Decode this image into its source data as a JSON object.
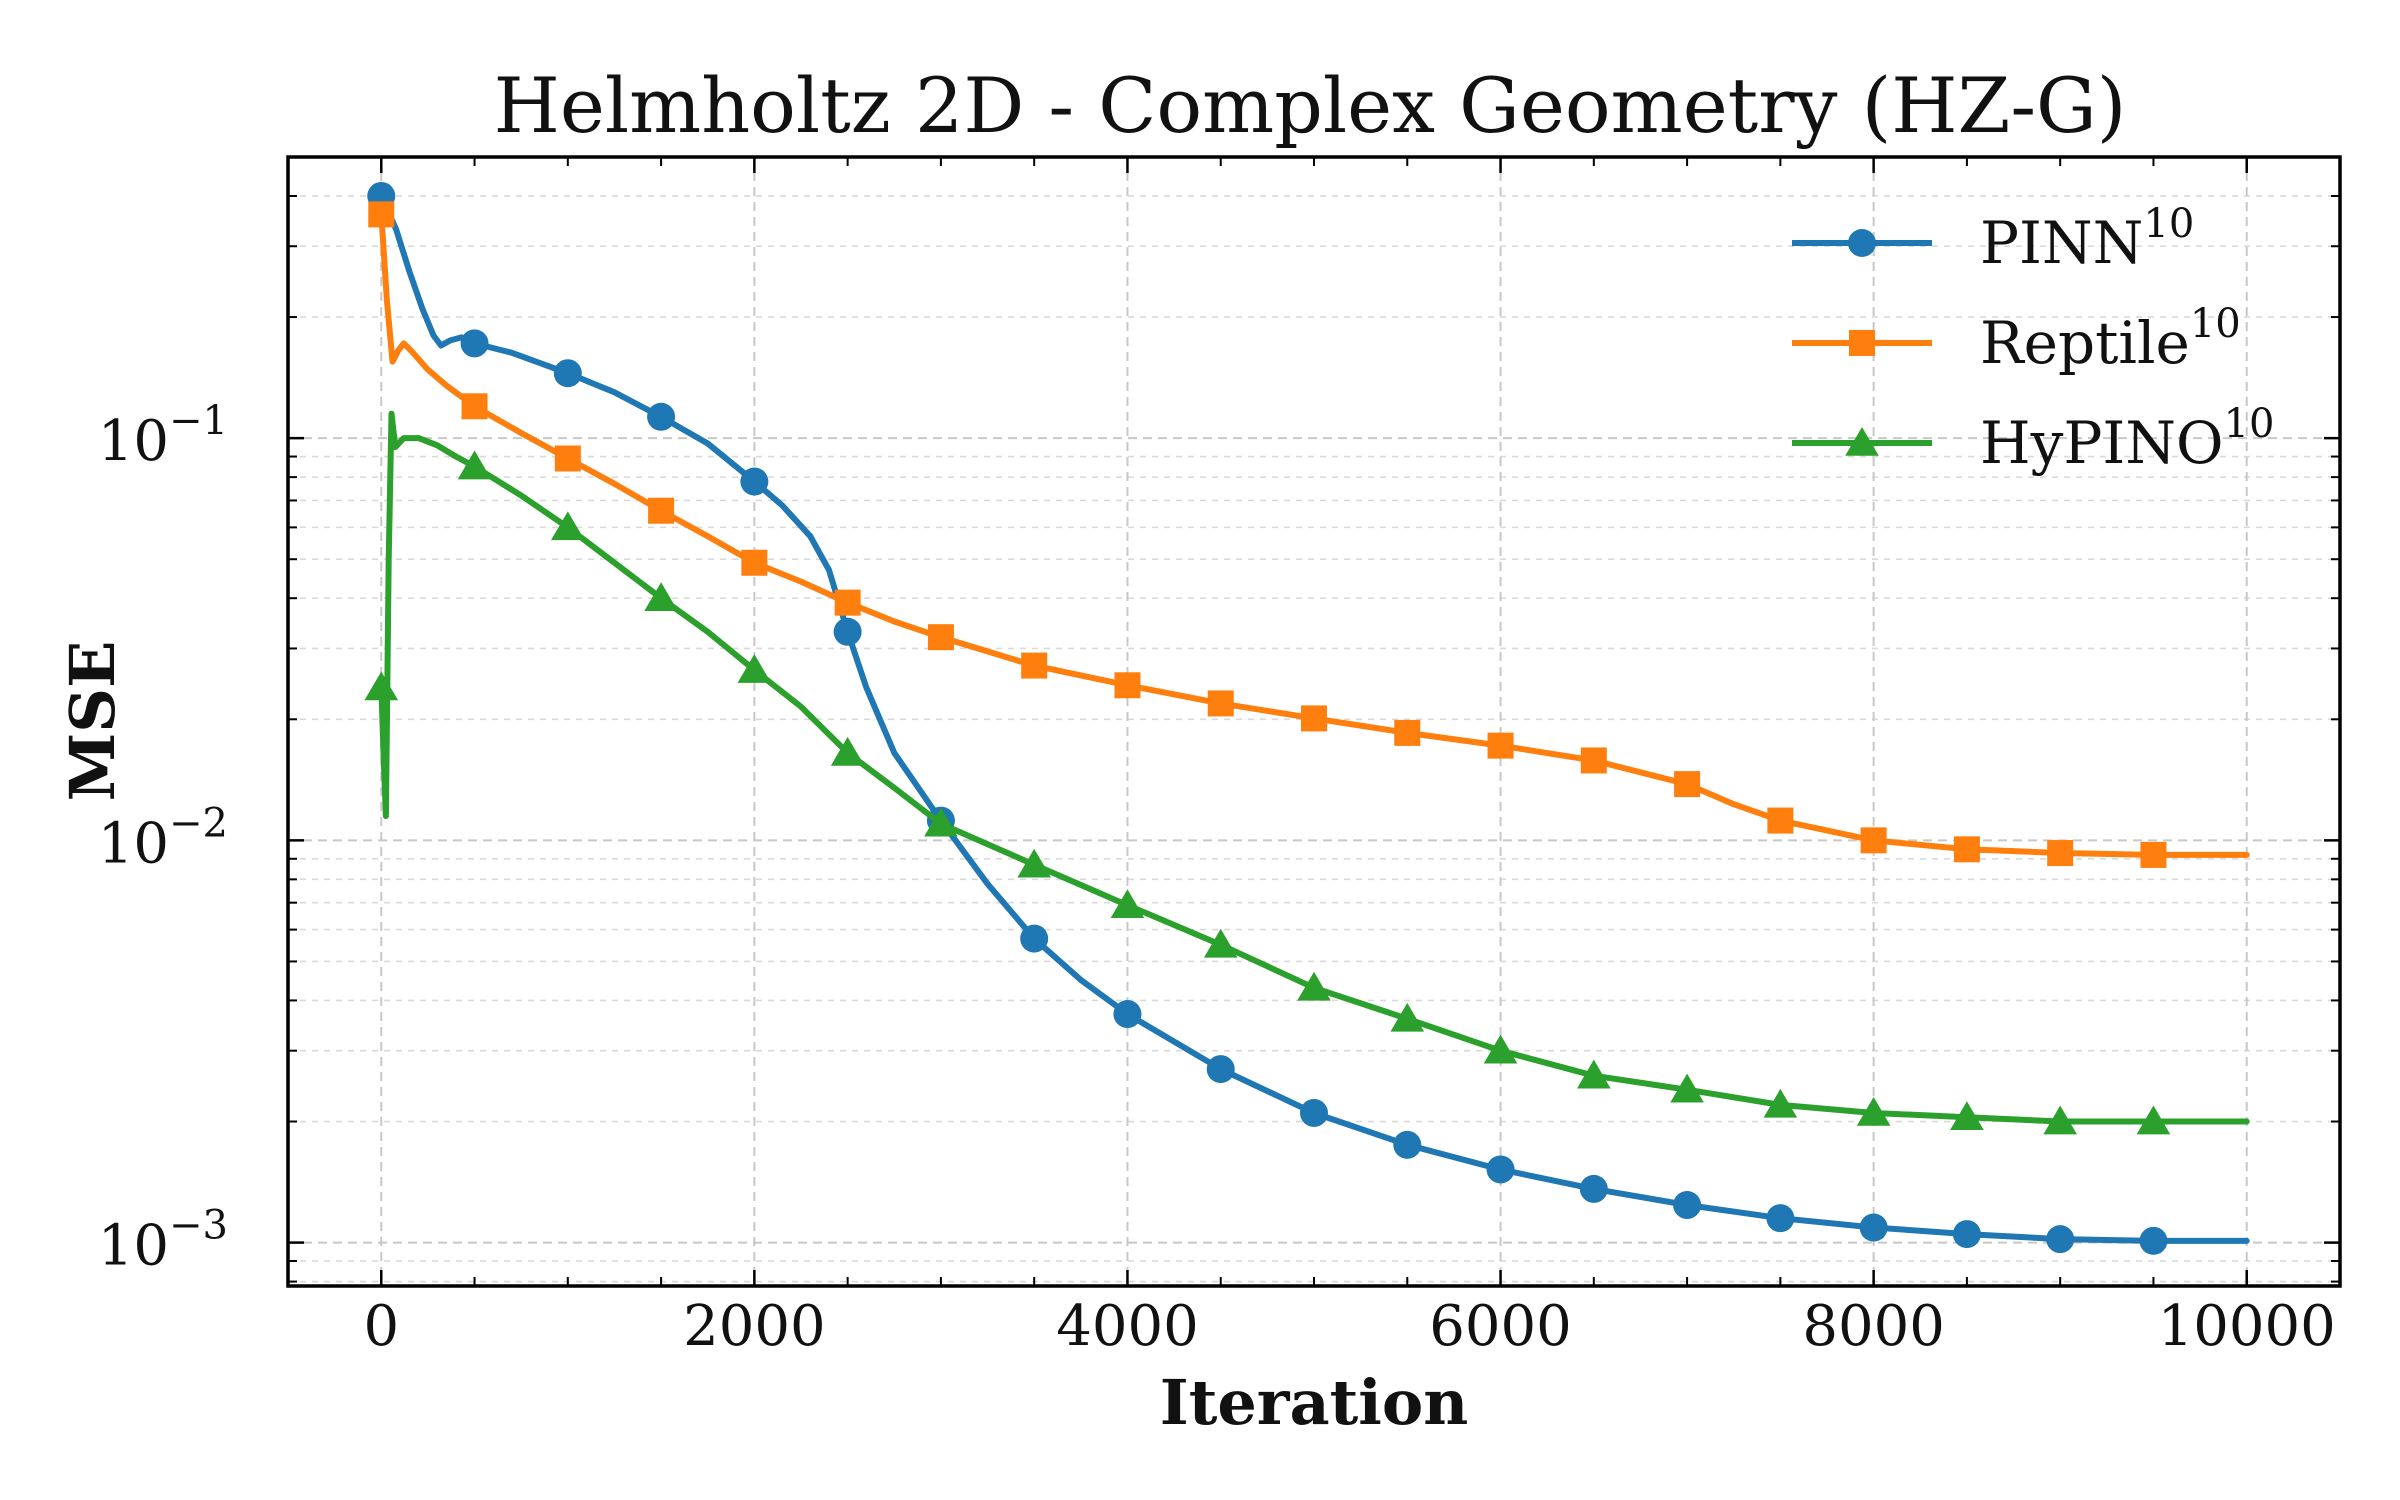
{
  "chart_data": {
    "type": "line",
    "title": "Helmholtz 2D - Complex Geometry (HZ-G)",
    "xlabel": "Iteration",
    "ylabel": "MSE",
    "xlim": [
      -500,
      10500
    ],
    "ylim": [
      0.00078,
      0.5
    ],
    "yscale": "log",
    "grid": true,
    "legend_position": "top-right",
    "x_ticks": [
      0,
      2000,
      4000,
      6000,
      8000,
      10000
    ],
    "x_tick_labels": [
      "0",
      "2000",
      "4000",
      "6000",
      "8000",
      "10000"
    ],
    "y_ticks": [
      0.001,
      0.01,
      0.1
    ],
    "y_tick_labels": [
      {
        "base": "10",
        "exp": "−3"
      },
      {
        "base": "10",
        "exp": "−2"
      },
      {
        "base": "10",
        "exp": "−1"
      }
    ],
    "series": [
      {
        "name": "PINN",
        "name_sup": "10",
        "color": "#1f77b4",
        "marker": "circle",
        "curve": [
          [
            0,
            0.4
          ],
          [
            80,
            0.33
          ],
          [
            150,
            0.26
          ],
          [
            220,
            0.21
          ],
          [
            280,
            0.18
          ],
          [
            320,
            0.17
          ],
          [
            370,
            0.175
          ],
          [
            430,
            0.178
          ],
          [
            500,
            0.172
          ],
          [
            700,
            0.163
          ],
          [
            1000,
            0.145
          ],
          [
            1250,
            0.13
          ],
          [
            1500,
            0.113
          ],
          [
            1750,
            0.097
          ],
          [
            2000,
            0.078
          ],
          [
            2150,
            0.068
          ],
          [
            2300,
            0.057
          ],
          [
            2400,
            0.047
          ],
          [
            2500,
            0.033
          ],
          [
            2600,
            0.024
          ],
          [
            2750,
            0.0165
          ],
          [
            3000,
            0.0112
          ],
          [
            3250,
            0.0078
          ],
          [
            3500,
            0.0057
          ],
          [
            3750,
            0.0045
          ],
          [
            4000,
            0.0037
          ],
          [
            4500,
            0.0027
          ],
          [
            5000,
            0.0021
          ],
          [
            5500,
            0.00175
          ],
          [
            6000,
            0.00152
          ],
          [
            6500,
            0.00136
          ],
          [
            7000,
            0.00124
          ],
          [
            7500,
            0.00115
          ],
          [
            8000,
            0.00109
          ],
          [
            8500,
            0.00105
          ],
          [
            9000,
            0.00102
          ],
          [
            9500,
            0.00101
          ],
          [
            10000,
            0.00101
          ]
        ],
        "markers": [
          [
            0,
            0.4
          ],
          [
            500,
            0.172
          ],
          [
            1000,
            0.145
          ],
          [
            1500,
            0.113
          ],
          [
            2000,
            0.078
          ],
          [
            2500,
            0.033
          ],
          [
            3000,
            0.0112
          ],
          [
            3500,
            0.0057
          ],
          [
            4000,
            0.0037
          ],
          [
            4500,
            0.0027
          ],
          [
            5000,
            0.0021
          ],
          [
            5500,
            0.00175
          ],
          [
            6000,
            0.00152
          ],
          [
            6500,
            0.00136
          ],
          [
            7000,
            0.00124
          ],
          [
            7500,
            0.00115
          ],
          [
            8000,
            0.00109
          ],
          [
            8500,
            0.00105
          ],
          [
            9000,
            0.00102
          ],
          [
            9500,
            0.00101
          ]
        ]
      },
      {
        "name": "Reptile",
        "name_sup": "10",
        "color": "#ff7f0e",
        "marker": "square",
        "curve": [
          [
            0,
            0.36
          ],
          [
            30,
            0.22
          ],
          [
            60,
            0.155
          ],
          [
            90,
            0.165
          ],
          [
            120,
            0.172
          ],
          [
            160,
            0.165
          ],
          [
            250,
            0.148
          ],
          [
            350,
            0.135
          ],
          [
            500,
            0.12
          ],
          [
            750,
            0.103
          ],
          [
            1000,
            0.089
          ],
          [
            1250,
            0.077
          ],
          [
            1500,
            0.066
          ],
          [
            1750,
            0.057
          ],
          [
            2000,
            0.049
          ],
          [
            2250,
            0.044
          ],
          [
            2500,
            0.039
          ],
          [
            2750,
            0.035
          ],
          [
            3000,
            0.032
          ],
          [
            3500,
            0.0272
          ],
          [
            4000,
            0.0243
          ],
          [
            4500,
            0.0219
          ],
          [
            5000,
            0.0201
          ],
          [
            5500,
            0.0185
          ],
          [
            6000,
            0.0172
          ],
          [
            6500,
            0.0158
          ],
          [
            7000,
            0.0138
          ],
          [
            7250,
            0.0123
          ],
          [
            7500,
            0.0112
          ],
          [
            8000,
            0.01
          ],
          [
            8500,
            0.0095
          ],
          [
            9000,
            0.0093
          ],
          [
            9500,
            0.0092
          ],
          [
            10000,
            0.0092
          ]
        ],
        "markers": [
          [
            0,
            0.36
          ],
          [
            500,
            0.12
          ],
          [
            1000,
            0.089
          ],
          [
            1500,
            0.066
          ],
          [
            2000,
            0.049
          ],
          [
            2500,
            0.039
          ],
          [
            3000,
            0.032
          ],
          [
            3500,
            0.0272
          ],
          [
            4000,
            0.0243
          ],
          [
            4500,
            0.0219
          ],
          [
            5000,
            0.0201
          ],
          [
            5500,
            0.0185
          ],
          [
            6000,
            0.0172
          ],
          [
            6500,
            0.0158
          ],
          [
            7000,
            0.0138
          ],
          [
            7500,
            0.0112
          ],
          [
            8000,
            0.01
          ],
          [
            8500,
            0.0095
          ],
          [
            9000,
            0.0093
          ],
          [
            9500,
            0.0092
          ]
        ]
      },
      {
        "name": "HyPINO",
        "name_sup": "10",
        "color": "#2ca02c",
        "marker": "triangle",
        "curve": [
          [
            0,
            0.024
          ],
          [
            15,
            0.015
          ],
          [
            25,
            0.0115
          ],
          [
            40,
            0.05
          ],
          [
            55,
            0.115
          ],
          [
            75,
            0.095
          ],
          [
            120,
            0.1
          ],
          [
            200,
            0.1
          ],
          [
            300,
            0.096
          ],
          [
            400,
            0.09
          ],
          [
            500,
            0.085
          ],
          [
            750,
            0.072
          ],
          [
            1000,
            0.06
          ],
          [
            1250,
            0.049
          ],
          [
            1500,
            0.04
          ],
          [
            1750,
            0.033
          ],
          [
            2000,
            0.0265
          ],
          [
            2250,
            0.0215
          ],
          [
            2500,
            0.0165
          ],
          [
            2750,
            0.0135
          ],
          [
            3000,
            0.011
          ],
          [
            3500,
            0.0087
          ],
          [
            4000,
            0.0069
          ],
          [
            4500,
            0.0055
          ],
          [
            5000,
            0.0043
          ],
          [
            5500,
            0.0036
          ],
          [
            6000,
            0.003
          ],
          [
            6500,
            0.0026
          ],
          [
            7000,
            0.0024
          ],
          [
            7500,
            0.0022
          ],
          [
            8000,
            0.0021
          ],
          [
            8500,
            0.00205
          ],
          [
            9000,
            0.002
          ],
          [
            9500,
            0.002
          ],
          [
            10000,
            0.002
          ]
        ],
        "markers": [
          [
            0,
            0.024
          ],
          [
            500,
            0.085
          ],
          [
            1000,
            0.06
          ],
          [
            1500,
            0.04
          ],
          [
            2000,
            0.0265
          ],
          [
            2500,
            0.0165
          ],
          [
            3000,
            0.011
          ],
          [
            3500,
            0.0087
          ],
          [
            4000,
            0.0069
          ],
          [
            4500,
            0.0055
          ],
          [
            5000,
            0.0043
          ],
          [
            5500,
            0.0036
          ],
          [
            6000,
            0.003
          ],
          [
            6500,
            0.0026
          ],
          [
            7000,
            0.0024
          ],
          [
            7500,
            0.0022
          ],
          [
            8000,
            0.0021
          ],
          [
            8500,
            0.00205
          ],
          [
            9000,
            0.002
          ],
          [
            9500,
            0.002
          ]
        ]
      }
    ]
  }
}
